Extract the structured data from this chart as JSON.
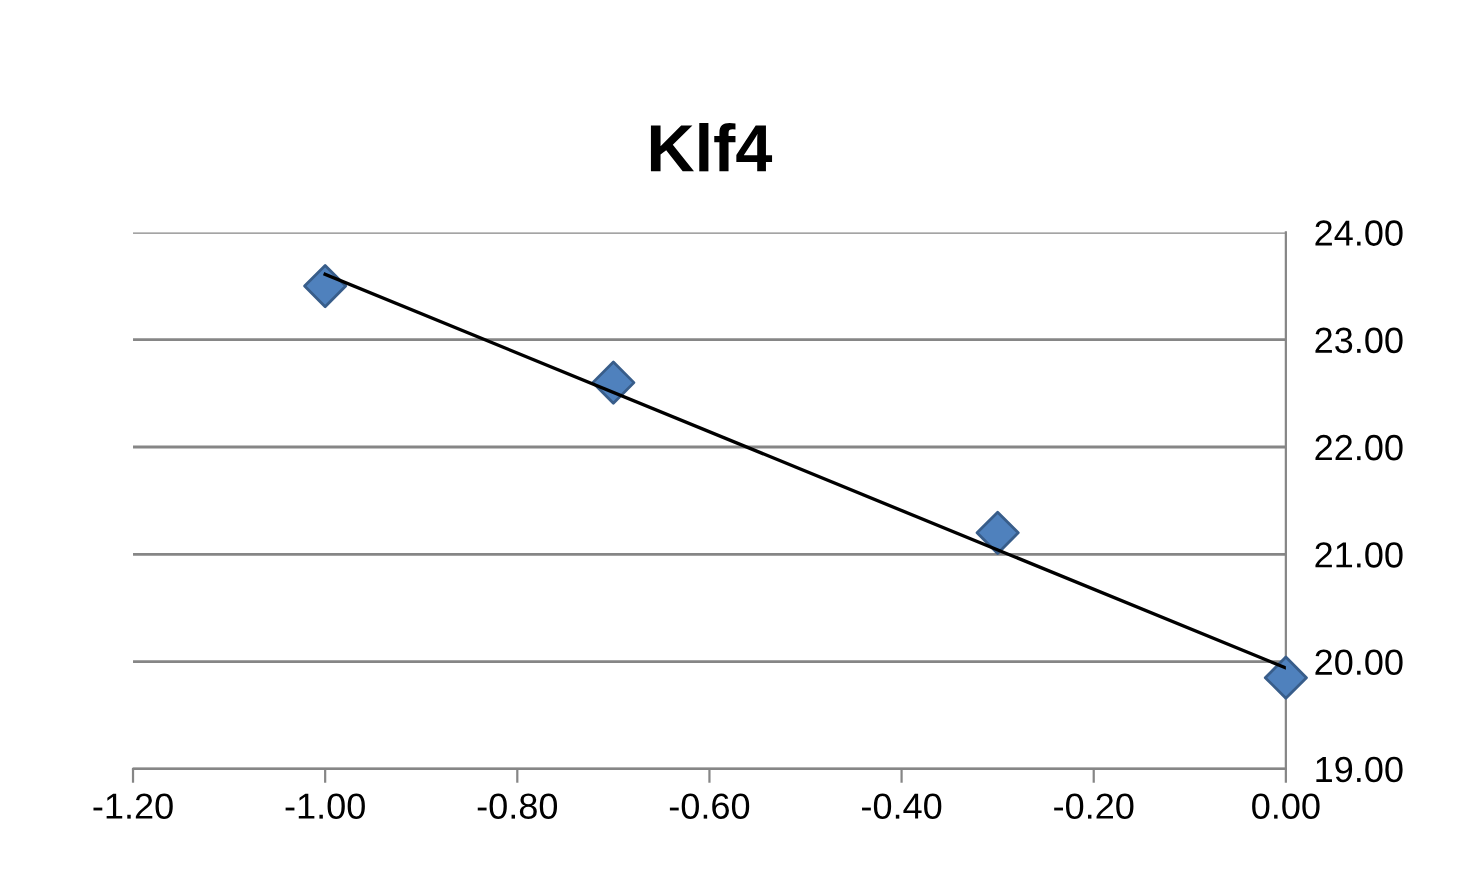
{
  "chart_data": {
    "type": "scatter",
    "title": "Klf4",
    "series": [
      {
        "type": "scatter",
        "color": "#4f81bd",
        "marker": "diamond",
        "x": [
          -1.0,
          -0.7,
          -0.3,
          0.0
        ],
        "values": [
          23.5,
          22.6,
          21.2,
          19.85
        ]
      },
      {
        "type": "line",
        "color": "#000000",
        "marker": "none",
        "line_style": "solid",
        "x": [
          -1.0,
          0.0
        ],
        "values": [
          23.61,
          19.94
        ]
      }
    ],
    "xlim": [
      -1.2,
      0.0
    ],
    "xticks": [
      {
        "value": -1.2,
        "label": "-1.20"
      },
      {
        "value": -1.0,
        "label": "-1.00"
      },
      {
        "value": -0.8,
        "label": "-0.80"
      },
      {
        "value": -0.6,
        "label": "-0.60"
      },
      {
        "value": -0.4,
        "label": "-0.40"
      },
      {
        "value": -0.2,
        "label": "-0.20"
      },
      {
        "value": 0.0,
        "label": "0.00"
      }
    ],
    "ylim": [
      19,
      24
    ],
    "yticks": [
      {
        "value": 19,
        "label": "19.00"
      },
      {
        "value": 20,
        "label": "20.00"
      },
      {
        "value": 21,
        "label": "21.00"
      },
      {
        "value": 22,
        "label": "22.00"
      },
      {
        "value": 23,
        "label": "23.00"
      },
      {
        "value": 24,
        "label": "24.00"
      }
    ],
    "grid": "y",
    "legend": false
  }
}
